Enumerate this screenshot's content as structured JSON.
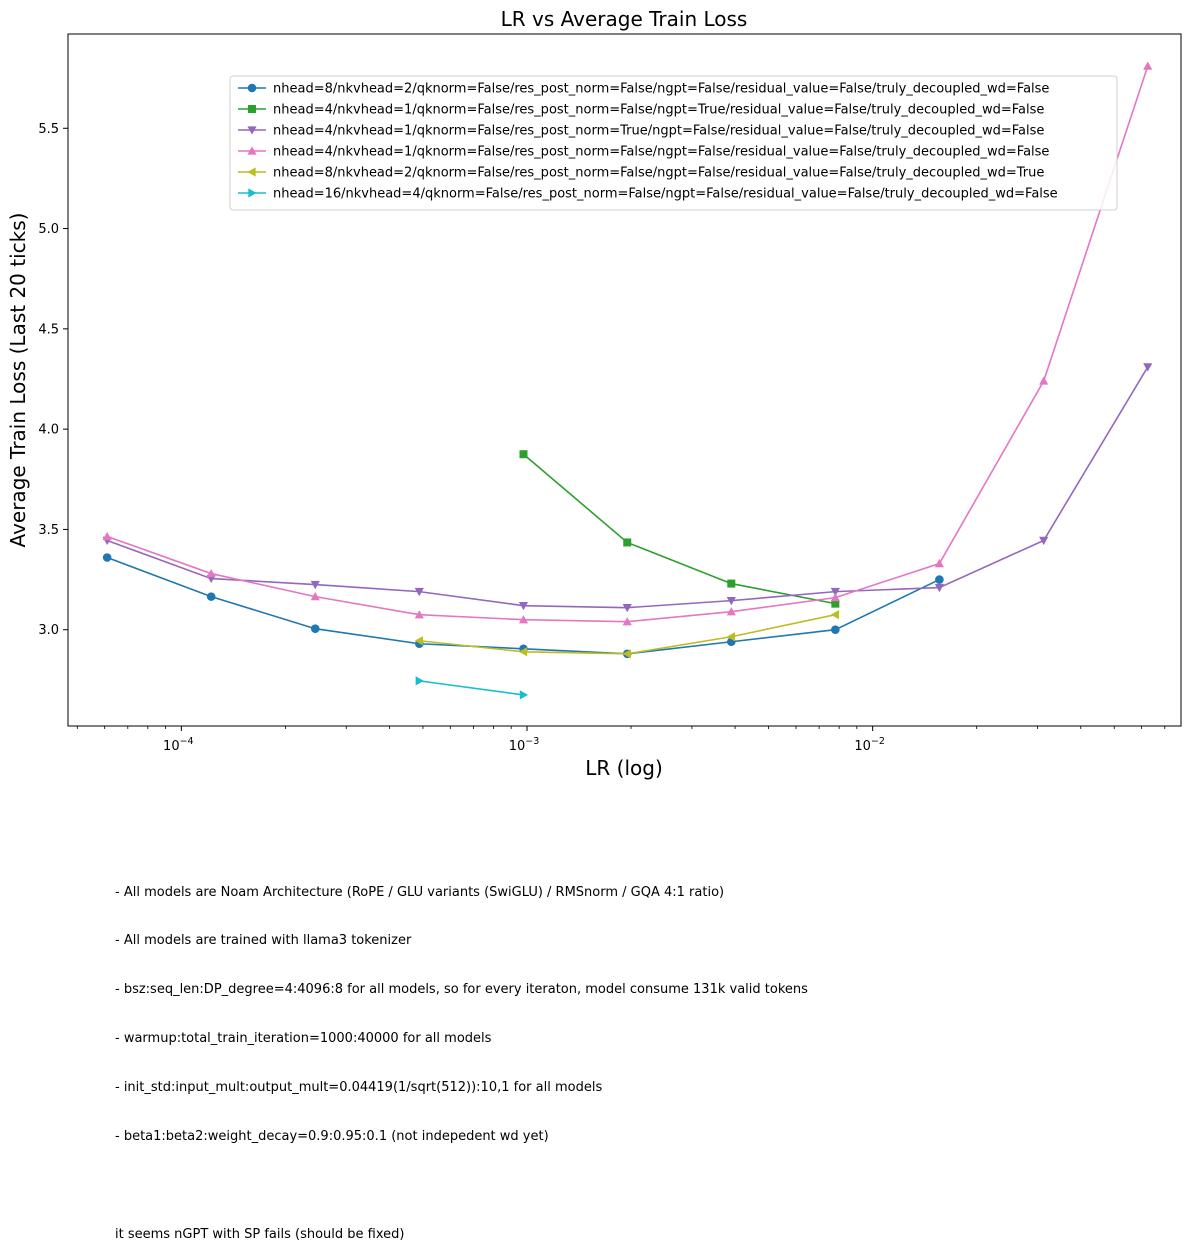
{
  "chart_data": {
    "type": "line",
    "title": "LR vs Average Train Loss",
    "xlabel": "LR (log)",
    "ylabel": "Average Train Loss (Last 20 ticks)",
    "xscale": "log",
    "xlim": [
      4.7e-05,
      0.078
    ],
    "ylim": [
      2.52,
      5.97
    ],
    "xticks": [
      {
        "value": 0.0001,
        "base": "10",
        "exp": "−4"
      },
      {
        "value": 0.001,
        "base": "10",
        "exp": "−3"
      },
      {
        "value": 0.01,
        "base": "10",
        "exp": "−2"
      }
    ],
    "yticks": [
      {
        "value": 3.0,
        "label": "3.0"
      },
      {
        "value": 3.5,
        "label": "3.5"
      },
      {
        "value": 4.0,
        "label": "4.0"
      },
      {
        "value": 4.5,
        "label": "4.5"
      },
      {
        "value": 5.0,
        "label": "5.0"
      },
      {
        "value": 5.5,
        "label": "5.5"
      }
    ],
    "grid": false,
    "legend_position": "upper-right",
    "series": [
      {
        "name": "nhead=8/nkvhead=2/qknorm=False/res_post_norm=False/ngpt=False/residual_value=False/truly_decoupled_wd=False",
        "color": "#1f77b4",
        "marker": "circle",
        "x": [
          6.1e-05,
          0.000122,
          0.000244,
          0.000488,
          0.000977,
          0.00195,
          0.0039,
          0.0078,
          0.0156
        ],
        "y": [
          3.36,
          3.165,
          3.005,
          2.93,
          2.905,
          2.88,
          2.94,
          3.0,
          3.25
        ]
      },
      {
        "name": "nhead=4/nkvhead=1/qknorm=False/res_post_norm=False/ngpt=True/residual_value=False/truly_decoupled_wd=False",
        "color": "#2ca02c",
        "marker": "square",
        "x": [
          0.000977,
          0.00195,
          0.0039,
          0.0078
        ],
        "y": [
          3.875,
          3.435,
          3.23,
          3.13
        ]
      },
      {
        "name": "nhead=4/nkvhead=1/qknorm=False/res_post_norm=True/ngpt=False/residual_value=False/truly_decoupled_wd=False",
        "color": "#9467bd",
        "marker": "triangle-down",
        "x": [
          6.1e-05,
          0.000122,
          0.000244,
          0.000488,
          0.000977,
          0.00195,
          0.0039,
          0.0078,
          0.0156,
          0.03125,
          0.0625
        ],
        "y": [
          3.445,
          3.255,
          3.225,
          3.19,
          3.12,
          3.11,
          3.145,
          3.19,
          3.21,
          3.445,
          4.31
        ]
      },
      {
        "name": "nhead=4/nkvhead=1/qknorm=False/res_post_norm=False/ngpt=False/residual_value=False/truly_decoupled_wd=False",
        "color": "#e377c2",
        "marker": "triangle-up",
        "x": [
          6.1e-05,
          0.000122,
          0.000244,
          0.000488,
          0.000977,
          0.00195,
          0.0039,
          0.0078,
          0.0156,
          0.03125,
          0.0625
        ],
        "y": [
          3.465,
          3.28,
          3.165,
          3.075,
          3.05,
          3.04,
          3.09,
          3.16,
          3.33,
          4.24,
          5.81
        ]
      },
      {
        "name": "nhead=8/nkvhead=2/qknorm=False/res_post_norm=False/ngpt=False/residual_value=False/truly_decoupled_wd=True",
        "color": "#bcbd22",
        "marker": "triangle-left",
        "x": [
          0.000488,
          0.000977,
          0.00195,
          0.0039,
          0.0078
        ],
        "y": [
          2.945,
          2.89,
          2.88,
          2.965,
          3.075
        ]
      },
      {
        "name": "nhead=16/nkvhead=4/qknorm=False/res_post_norm=False/ngpt=False/residual_value=False/truly_decoupled_wd=False",
        "color": "#17becf",
        "marker": "triangle-right",
        "x": [
          0.000488,
          0.000977
        ],
        "y": [
          2.745,
          2.675
        ]
      }
    ]
  },
  "notes": [
    "- All models are Noam Architecture (RoPE / GLU variants (SwiGLU) / RMSnorm / GQA 4:1 ratio)",
    "- All models are trained with llama3 tokenizer",
    "- bsz:seq_len:DP_degree=4:4096:8 for all models, so for every iteraton, model consume 131k valid tokens",
    "- warmup:total_train_iteration=1000:40000 for all models",
    "- init_std:input_mult:output_mult=0.04419(1/sqrt(512)):10,1 for all models",
    "- beta1:beta2:weight_decay=0.9:0.95:0.1 (not indepedent wd yet)"
  ],
  "remark": "it seems nGPT with SP fails (should be fixed)"
}
